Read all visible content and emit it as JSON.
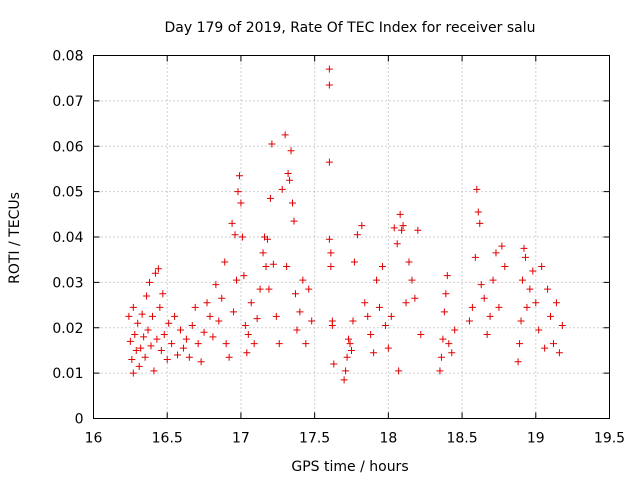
{
  "chart_data": {
    "type": "scatter",
    "title": "Day 179 of 2019, Rate Of TEC Index for receiver salu",
    "xlabel": "GPS time / hours",
    "ylabel": "ROTI / TECUs",
    "xlim": [
      16,
      19.5
    ],
    "ylim": [
      0,
      0.08
    ],
    "xticks": [
      16,
      16.5,
      17,
      17.5,
      18,
      18.5,
      19,
      19.5
    ],
    "xtick_labels": [
      "16",
      "16.5",
      "17",
      "17.5",
      "18",
      "18.5",
      "19",
      "19.5"
    ],
    "yticks": [
      0,
      0.01,
      0.02,
      0.03,
      0.04,
      0.05,
      0.06,
      0.07,
      0.08
    ],
    "ytick_labels": [
      "0",
      "0.01",
      "0.02",
      "0.03",
      "0.04",
      "0.05",
      "0.06",
      "0.07",
      "0.08"
    ],
    "grid": true,
    "marker": "+",
    "marker_color": "#e00000",
    "series": [
      {
        "name": "ROTI",
        "points": [
          [
            16.24,
            0.0225
          ],
          [
            16.25,
            0.017
          ],
          [
            16.26,
            0.013
          ],
          [
            16.27,
            0.01
          ],
          [
            16.27,
            0.0245
          ],
          [
            16.28,
            0.0185
          ],
          [
            16.29,
            0.015
          ],
          [
            16.3,
            0.021
          ],
          [
            16.31,
            0.0115
          ],
          [
            16.32,
            0.0155
          ],
          [
            16.33,
            0.023
          ],
          [
            16.34,
            0.018
          ],
          [
            16.35,
            0.0135
          ],
          [
            16.36,
            0.027
          ],
          [
            16.37,
            0.0195
          ],
          [
            16.38,
            0.03
          ],
          [
            16.39,
            0.016
          ],
          [
            16.4,
            0.0225
          ],
          [
            16.41,
            0.0105
          ],
          [
            16.42,
            0.032
          ],
          [
            16.43,
            0.0175
          ],
          [
            16.44,
            0.033
          ],
          [
            16.45,
            0.0245
          ],
          [
            16.46,
            0.015
          ],
          [
            16.47,
            0.0275
          ],
          [
            16.48,
            0.0185
          ],
          [
            16.5,
            0.013
          ],
          [
            16.51,
            0.021
          ],
          [
            16.53,
            0.0165
          ],
          [
            16.55,
            0.0225
          ],
          [
            16.57,
            0.014
          ],
          [
            16.59,
            0.0195
          ],
          [
            16.61,
            0.0155
          ],
          [
            16.63,
            0.0175
          ],
          [
            16.65,
            0.0135
          ],
          [
            16.67,
            0.0205
          ],
          [
            16.69,
            0.0245
          ],
          [
            16.71,
            0.0165
          ],
          [
            16.73,
            0.0125
          ],
          [
            16.75,
            0.019
          ],
          [
            16.77,
            0.0255
          ],
          [
            16.79,
            0.0225
          ],
          [
            16.81,
            0.018
          ],
          [
            16.83,
            0.0295
          ],
          [
            16.85,
            0.0215
          ],
          [
            16.87,
            0.0265
          ],
          [
            16.89,
            0.0345
          ],
          [
            16.9,
            0.0165
          ],
          [
            16.92,
            0.0135
          ],
          [
            16.94,
            0.043
          ],
          [
            16.95,
            0.0235
          ],
          [
            16.96,
            0.0405
          ],
          [
            16.97,
            0.0305
          ],
          [
            16.98,
            0.05
          ],
          [
            16.99,
            0.0535
          ],
          [
            17.0,
            0.0475
          ],
          [
            17.01,
            0.04
          ],
          [
            17.02,
            0.0315
          ],
          [
            17.03,
            0.0205
          ],
          [
            17.04,
            0.0145
          ],
          [
            17.05,
            0.0185
          ],
          [
            17.07,
            0.0255
          ],
          [
            17.09,
            0.0165
          ],
          [
            17.11,
            0.022
          ],
          [
            17.13,
            0.0285
          ],
          [
            17.15,
            0.0365
          ],
          [
            17.16,
            0.04
          ],
          [
            17.17,
            0.0335
          ],
          [
            17.18,
            0.0395
          ],
          [
            17.19,
            0.0285
          ],
          [
            17.2,
            0.0485
          ],
          [
            17.21,
            0.0605
          ],
          [
            17.22,
            0.034
          ],
          [
            17.24,
            0.0225
          ],
          [
            17.26,
            0.0165
          ],
          [
            17.28,
            0.0505
          ],
          [
            17.3,
            0.0625
          ],
          [
            17.31,
            0.0335
          ],
          [
            17.32,
            0.054
          ],
          [
            17.33,
            0.0525
          ],
          [
            17.34,
            0.059
          ],
          [
            17.35,
            0.0475
          ],
          [
            17.36,
            0.0435
          ],
          [
            17.37,
            0.0275
          ],
          [
            17.38,
            0.0195
          ],
          [
            17.4,
            0.0235
          ],
          [
            17.42,
            0.0305
          ],
          [
            17.44,
            0.0165
          ],
          [
            17.46,
            0.0285
          ],
          [
            17.48,
            0.0215
          ],
          [
            17.6,
            0.077
          ],
          [
            17.6,
            0.0735
          ],
          [
            17.6,
            0.0565
          ],
          [
            17.6,
            0.0395
          ],
          [
            17.61,
            0.0365
          ],
          [
            17.61,
            0.0335
          ],
          [
            17.62,
            0.0215
          ],
          [
            17.62,
            0.0205
          ],
          [
            17.63,
            0.012
          ],
          [
            17.7,
            0.0085
          ],
          [
            17.71,
            0.0105
          ],
          [
            17.72,
            0.0135
          ],
          [
            17.73,
            0.0175
          ],
          [
            17.74,
            0.0165
          ],
          [
            17.75,
            0.015
          ],
          [
            17.76,
            0.0215
          ],
          [
            17.77,
            0.0345
          ],
          [
            17.79,
            0.0405
          ],
          [
            17.82,
            0.0425
          ],
          [
            17.84,
            0.0255
          ],
          [
            17.86,
            0.0225
          ],
          [
            17.88,
            0.0185
          ],
          [
            17.9,
            0.0145
          ],
          [
            17.92,
            0.0305
          ],
          [
            17.94,
            0.0245
          ],
          [
            17.96,
            0.0335
          ],
          [
            17.98,
            0.0205
          ],
          [
            18.0,
            0.0155
          ],
          [
            18.02,
            0.0225
          ],
          [
            18.04,
            0.042
          ],
          [
            18.06,
            0.0385
          ],
          [
            18.07,
            0.0105
          ],
          [
            18.08,
            0.045
          ],
          [
            18.09,
            0.0415
          ],
          [
            18.1,
            0.0425
          ],
          [
            18.12,
            0.0255
          ],
          [
            18.14,
            0.0345
          ],
          [
            18.16,
            0.0305
          ],
          [
            18.18,
            0.0265
          ],
          [
            18.2,
            0.0415
          ],
          [
            18.22,
            0.0185
          ],
          [
            18.35,
            0.0105
          ],
          [
            18.36,
            0.0135
          ],
          [
            18.37,
            0.0175
          ],
          [
            18.38,
            0.0235
          ],
          [
            18.39,
            0.0275
          ],
          [
            18.4,
            0.0315
          ],
          [
            18.41,
            0.0165
          ],
          [
            18.43,
            0.0145
          ],
          [
            18.45,
            0.0195
          ],
          [
            18.55,
            0.0215
          ],
          [
            18.57,
            0.0245
          ],
          [
            18.59,
            0.0355
          ],
          [
            18.6,
            0.0505
          ],
          [
            18.61,
            0.0455
          ],
          [
            18.62,
            0.043
          ],
          [
            18.63,
            0.0295
          ],
          [
            18.65,
            0.0265
          ],
          [
            18.67,
            0.0185
          ],
          [
            18.69,
            0.0225
          ],
          [
            18.71,
            0.0305
          ],
          [
            18.73,
            0.0365
          ],
          [
            18.75,
            0.0245
          ],
          [
            18.77,
            0.038
          ],
          [
            18.79,
            0.0335
          ],
          [
            18.88,
            0.0125
          ],
          [
            18.89,
            0.0165
          ],
          [
            18.9,
            0.0215
          ],
          [
            18.91,
            0.0305
          ],
          [
            18.92,
            0.0375
          ],
          [
            18.93,
            0.0355
          ],
          [
            18.94,
            0.0245
          ],
          [
            18.96,
            0.0285
          ],
          [
            18.98,
            0.0325
          ],
          [
            19.0,
            0.0255
          ],
          [
            19.02,
            0.0195
          ],
          [
            19.04,
            0.0335
          ],
          [
            19.06,
            0.0155
          ],
          [
            19.08,
            0.0285
          ],
          [
            19.1,
            0.0225
          ],
          [
            19.12,
            0.0165
          ],
          [
            19.14,
            0.0255
          ],
          [
            19.16,
            0.0145
          ],
          [
            19.18,
            0.0205
          ]
        ]
      }
    ]
  }
}
